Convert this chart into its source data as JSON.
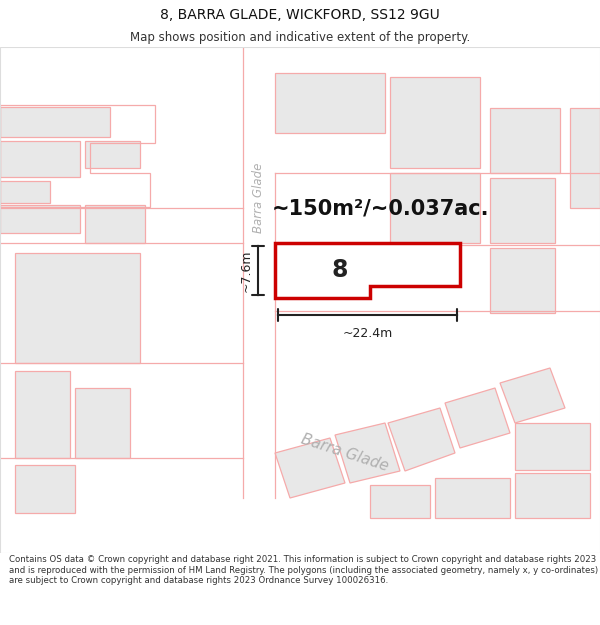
{
  "title": "8, BARRA GLADE, WICKFORD, SS12 9GU",
  "subtitle": "Map shows position and indicative extent of the property.",
  "footer": "Contains OS data © Crown copyright and database right 2021. This information is subject to Crown copyright and database rights 2023 and is reproduced with the permission of HM Land Registry. The polygons (including the associated geometry, namely x, y co-ordinates) are subject to Crown copyright and database rights 2023 Ordnance Survey 100026316.",
  "bg_color": "#ffffff",
  "road_color": "#f5aaaa",
  "building_fill": "#e8e8e8",
  "building_stroke": "#f5aaaa",
  "highlight_fill": "#ffffff",
  "highlight_stroke": "#cc0000",
  "area_text": "~150m²/~0.037ac.",
  "number_text": "8",
  "dim_width": "~22.4m",
  "dim_height": "~7.6m",
  "street_name_v": "Barra Glade",
  "street_name_b": "Barra Glade",
  "title_fontsize": 10,
  "subtitle_fontsize": 8.5,
  "footer_fontsize": 6.2
}
